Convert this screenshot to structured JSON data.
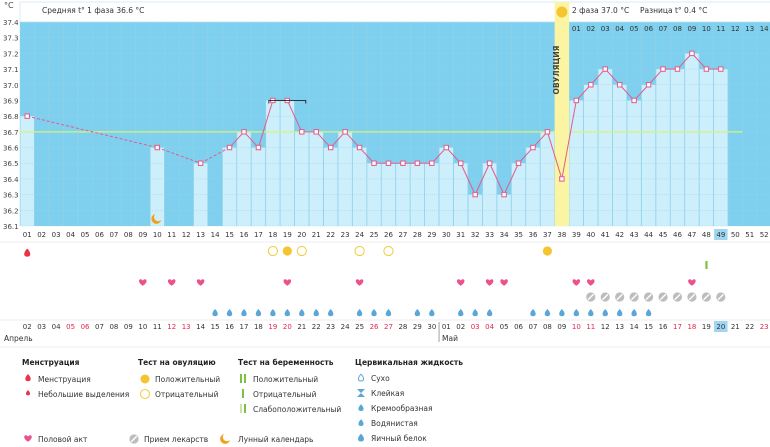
{
  "chart_data": {
    "type": "line",
    "y_unit": "°C",
    "ylim": [
      36.1,
      37.4
    ],
    "yticks": [
      36.1,
      36.2,
      36.3,
      36.4,
      36.5,
      36.6,
      36.7,
      36.8,
      36.9,
      37.0,
      37.1,
      37.2,
      37.3,
      37.4
    ],
    "ovulation_label": "ОВУЛЯЦИЯ",
    "phase1_text": "Средняя t° 1 фаза  36.6 °C",
    "phase2_text": "2 фаза  37.0 °C",
    "difference_text": "Разница t°  0.4 °C",
    "coverline": 36.7,
    "ovulation_day": 38,
    "current_day": 49,
    "cycle_days": [
      "01",
      "02",
      "03",
      "04",
      "05",
      "06",
      "07",
      "08",
      "09",
      "10",
      "11",
      "12",
      "13",
      "14",
      "15",
      "16",
      "17",
      "18",
      "19",
      "20",
      "21",
      "22",
      "23",
      "24",
      "25",
      "26",
      "27",
      "28",
      "29",
      "30",
      "31",
      "32",
      "33",
      "34",
      "35",
      "36",
      "37",
      "38",
      "39",
      "40",
      "41",
      "42",
      "43",
      "44",
      "45",
      "46",
      "47",
      "48",
      "49",
      "50",
      "51",
      "52"
    ],
    "phase2_days": [
      "01",
      "02",
      "03",
      "04",
      "05",
      "06",
      "07",
      "08",
      "09",
      "10",
      "11",
      "12",
      "13",
      "14"
    ],
    "dates": [
      "02",
      "03",
      "04",
      "05",
      "06",
      "07",
      "08",
      "09",
      "10",
      "11",
      "12",
      "13",
      "14",
      "15",
      "16",
      "17",
      "18",
      "19",
      "20",
      "21",
      "22",
      "23",
      "24",
      "25",
      "26",
      "27",
      "28",
      "29",
      "30",
      "01",
      "02",
      "03",
      "04",
      "05",
      "06",
      "07",
      "08",
      "09",
      "10",
      "11",
      "12",
      "13",
      "14",
      "15",
      "16",
      "17",
      "18",
      "19",
      "20",
      "21",
      "22",
      "23"
    ],
    "month_labels": [
      "Апрель",
      "Май"
    ],
    "temperatures": [
      36.8,
      null,
      null,
      null,
      null,
      null,
      null,
      null,
      null,
      36.6,
      null,
      null,
      36.5,
      null,
      36.6,
      36.7,
      36.6,
      36.9,
      36.9,
      36.7,
      36.7,
      36.6,
      36.7,
      36.6,
      36.5,
      36.5,
      36.5,
      36.5,
      36.5,
      36.6,
      36.5,
      36.3,
      36.5,
      36.3,
      36.5,
      36.6,
      36.7,
      36.4,
      36.9,
      37.0,
      37.1,
      37.0,
      36.9,
      37.0,
      37.1,
      37.1,
      37.2,
      37.1,
      37.1,
      null,
      null,
      null
    ],
    "menstruation_days": [
      1
    ],
    "ovulation_test_positive_days": [
      19,
      37
    ],
    "ovulation_test_negative_days": [
      18,
      20,
      24,
      26
    ],
    "intercourse_days": [
      9,
      11,
      13,
      19,
      24,
      31,
      33,
      34,
      39,
      40,
      47
    ],
    "medication_days": [
      40,
      41,
      42,
      43,
      44,
      45,
      46,
      47,
      48,
      49
    ],
    "pregnancy_test_positive_days": [
      48
    ],
    "cervical_fluid_days": [
      14,
      15,
      16,
      17,
      18,
      19,
      20,
      21,
      22,
      24,
      25,
      26,
      28,
      29,
      31,
      32,
      33,
      36,
      37,
      38,
      39,
      40,
      41,
      42,
      43,
      44
    ],
    "weekend_date_days": [
      4,
      5,
      11,
      12,
      18,
      19,
      25,
      26,
      32,
      33,
      39,
      40,
      46,
      47,
      52
    ]
  },
  "legend": {
    "menstruation": {
      "title": "Менструация",
      "items": [
        "Менструация",
        "Небольшие выделения"
      ]
    },
    "ovulation_test": {
      "title": "Тест на овуляцию",
      "items": [
        "Положительный",
        "Отрицательный"
      ]
    },
    "pregnancy_test": {
      "title": "Тест на беременность",
      "items": [
        "Положительный",
        "Отрицательный",
        "Слабоположительный"
      ]
    },
    "cervical": {
      "title": "Цервикальная жидкость",
      "items": [
        "Сухо",
        "Клейкая",
        "Кремообразная",
        "Водянистая",
        "Яичный белок"
      ]
    },
    "bottom": [
      "Половой акт",
      "Прием лекарств",
      "Лунный календарь"
    ]
  },
  "colors": {
    "sky": "#7fd0ee",
    "cell": "#cdeefb",
    "line": "#e35a8c",
    "ovulation": "#fbf5a3",
    "heart": "#ee4f8d",
    "drop": "#5aa6d8",
    "weekend": "#e0284f"
  }
}
